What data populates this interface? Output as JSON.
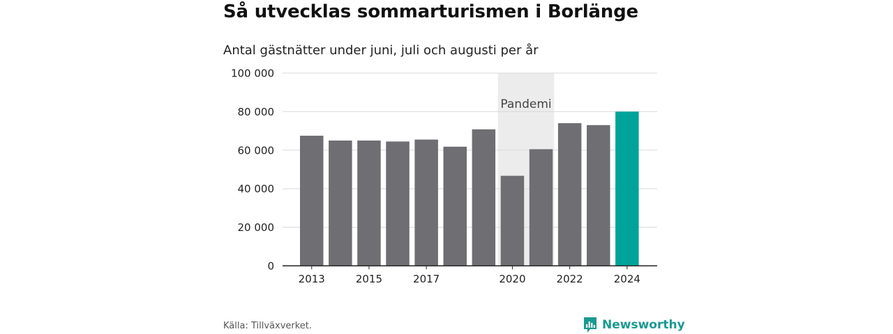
{
  "title": "Så utvecklas sommarturismen i Borlänge",
  "subtitle": "Antal gästnätter under juni, juli och augusti per år",
  "source": "Källa: Tillväxverket.",
  "brand": {
    "name": "Newsworthy",
    "icon": "newsworthy-logo-icon"
  },
  "colors": {
    "bar": "#6f6e73",
    "highlight": "#00a39a",
    "band": "#ececec",
    "grid": "#d9d9d9",
    "brand": "#1a9a91"
  },
  "chart_data": {
    "type": "bar",
    "categories": [
      "2013",
      "2014",
      "2015",
      "2016",
      "2017",
      "2018",
      "2019",
      "2020",
      "2021",
      "2022",
      "2023",
      "2024"
    ],
    "values": [
      67500,
      65000,
      65000,
      64500,
      65500,
      61800,
      70800,
      46700,
      60500,
      74000,
      73000,
      80000
    ],
    "highlight": "2024",
    "x_tick_labels": [
      "2013",
      "2015",
      "2017",
      "2020",
      "2022",
      "2024"
    ],
    "y_ticks": [
      0,
      20000,
      40000,
      60000,
      80000,
      100000
    ],
    "y_tick_labels": [
      "0",
      "20 000",
      "40 000",
      "60 000",
      "80 000",
      "100 000"
    ],
    "ylim": [
      0,
      100000
    ],
    "grid": true,
    "annotation": {
      "label": "Pandemi",
      "from": "2020",
      "to": "2021"
    }
  }
}
